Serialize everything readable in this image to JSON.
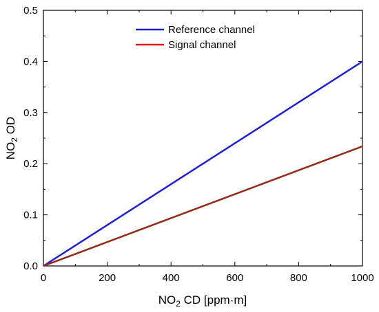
{
  "chart_data": {
    "type": "line",
    "xlabel": {
      "main": "NO",
      "sub": "2",
      "rest": " CD [ppm·m]"
    },
    "ylabel": {
      "main": "NO",
      "sub": "2",
      "rest": " OD"
    },
    "xlim": [
      0,
      1000
    ],
    "ylim": [
      0,
      0.5
    ],
    "x_ticks": [
      0,
      200,
      400,
      600,
      800,
      1000
    ],
    "x_tick_labels": [
      "0",
      "200",
      "400",
      "600",
      "800",
      "1000"
    ],
    "y_ticks": [
      0,
      0.1,
      0.2,
      0.3,
      0.4,
      0.5
    ],
    "y_tick_labels": [
      "0.0",
      "0.1",
      "0.2",
      "0.3",
      "0.4",
      "0.5"
    ],
    "grid": false,
    "legend_position": "top-center",
    "series": [
      {
        "name": "Reference channel",
        "color": "#1f1fd0",
        "x": [
          0,
          1000
        ],
        "y": [
          0,
          0.4
        ]
      },
      {
        "name": "Signal channel",
        "color": "#e8141c",
        "x": [
          0,
          1000
        ],
        "y": [
          0,
          0.234
        ]
      }
    ],
    "annotations": [
      {
        "type": "overlay-line",
        "color": "#8b2e1a",
        "x": [
          0,
          1000
        ],
        "y": [
          0,
          0.234
        ]
      }
    ]
  }
}
